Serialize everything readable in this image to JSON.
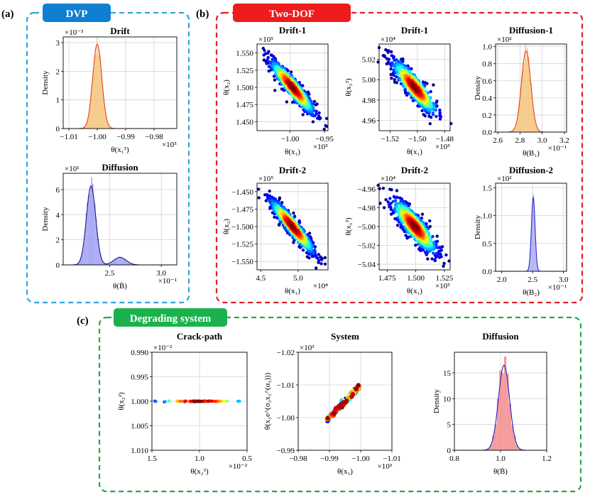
{
  "panels": {
    "a": {
      "tag": "(a)",
      "label": "DVP",
      "color": "#0f7fd1",
      "border": "#2aa6e0"
    },
    "b": {
      "tag": "(b)",
      "label": "Two-DOF",
      "color": "#ee1c1c",
      "border": "#e02020"
    },
    "c": {
      "tag": "(c)",
      "label": "Degrading system",
      "color": "#1bb24d",
      "border": "#22a84a"
    }
  },
  "chart_data": [
    {
      "id": "a1",
      "type": "area",
      "title": "Drift",
      "panel": "a",
      "ylabel": "Density",
      "xlabel": "θ(x₁³)",
      "x_multiplier": "×10⁵",
      "y_multiplier": "×10⁻³",
      "xlim": [
        -1.012,
        -0.972
      ],
      "ylim": [
        0,
        3.2
      ],
      "xticks": [
        -1.01,
        -1.0,
        -0.99,
        -0.98
      ],
      "xtick_labels": [
        "−1.01",
        "−1.00",
        "−0.99",
        "−0.98"
      ],
      "yticks": [
        0,
        1,
        2,
        3
      ],
      "ytick_labels": [
        "0",
        "1",
        "2",
        "3"
      ],
      "color": "#f5c070",
      "line_color": "#e0401f",
      "peak_x": -1.0,
      "peak_y": 2.95,
      "width": 0.0016
    },
    {
      "id": "a2",
      "type": "area",
      "title": "Diffusion",
      "panel": "a",
      "ylabel": "Density",
      "xlabel": "θ(Ḃ)",
      "x_multiplier": "×10⁻¹",
      "y_multiplier": "×10¹",
      "xlim": [
        2.05,
        3.15
      ],
      "ylim": [
        0,
        7.3
      ],
      "xticks": [
        2.5,
        3.0
      ],
      "xtick_labels": [
        "2.5",
        "3.0"
      ],
      "yticks": [
        0,
        2,
        4,
        6
      ],
      "ytick_labels": [
        "0",
        "2",
        "4",
        "6"
      ],
      "color": "#9a9af0",
      "line_color": "#1a1a8c",
      "peak_x": 2.32,
      "peak_y": 6.3,
      "width": 0.045,
      "peak2_x": 2.6,
      "peak2_y": 0.6,
      "width2": 0.06
    },
    {
      "id": "b1",
      "type": "scatter",
      "title": "Drift-1",
      "panel": "b",
      "xlabel": "θ(x₁)",
      "ylabel": "θ(x₂)",
      "x_multiplier": "×10⁵",
      "y_multiplier": "×10⁵",
      "xlim": [
        -1.048,
        -0.945
      ],
      "ylim": [
        1.437,
        1.563
      ],
      "xticks": [
        -1.0,
        -0.95
      ],
      "xtick_labels": [
        "−1.00",
        "−0.95"
      ],
      "yticks": [
        1.45,
        1.475,
        1.5,
        1.525,
        1.55
      ],
      "ytick_labels": [
        "1.450",
        "1.475",
        "1.500",
        "1.525",
        "1.550"
      ],
      "corr": -0.92
    },
    {
      "id": "b2",
      "type": "scatter",
      "title": "Drift-1",
      "panel": "b",
      "xlabel": "θ(x₁)",
      "ylabel": "θ(x₂³)",
      "x_multiplier": "×10⁵",
      "y_multiplier": "×10⁴",
      "xlim": [
        -1.528,
        -1.476
      ],
      "ylim": [
        4.95,
        5.035
      ],
      "xticks": [
        -1.52,
        -1.5,
        -1.48
      ],
      "xtick_labels": [
        "−1.52",
        "−1.50",
        "−1.48"
      ],
      "yticks": [
        4.96,
        4.98,
        5.0,
        5.02
      ],
      "ytick_labels": [
        "4.96",
        "4.98",
        "5.00",
        "5.02"
      ],
      "corr": -0.88
    },
    {
      "id": "b3",
      "type": "area",
      "title": "Diffusion-1",
      "panel": "b",
      "ylabel": "Density",
      "xlabel": "θ(B₁)",
      "x_multiplier": "×10⁻¹",
      "y_multiplier": "×10²",
      "xlim": [
        2.58,
        3.22
      ],
      "ylim": [
        0,
        1.03
      ],
      "xticks": [
        2.6,
        2.8,
        3.0,
        3.2
      ],
      "xtick_labels": [
        "2.6",
        "2.8",
        "3.0",
        "3.2"
      ],
      "yticks": [
        0,
        0.2,
        0.4,
        0.6,
        0.8,
        1.0
      ],
      "ytick_labels": [
        "0.0",
        "0.2",
        "0.4",
        "0.6",
        "0.8",
        "1.0"
      ],
      "color": "#f5c070",
      "line_color": "#e0401f",
      "peak_x": 2.855,
      "peak_y": 0.95,
      "width": 0.042
    },
    {
      "id": "b4",
      "type": "scatter",
      "title": "Drift-2",
      "panel": "b",
      "xlabel": "θ(x₁)",
      "ylabel": "θ(x₂)",
      "x_multiplier": "×10⁴",
      "y_multiplier": "×10⁵",
      "xlim": [
        4.45,
        5.4
      ],
      "ylim": [
        -1.562,
        -1.438
      ],
      "xticks": [
        4.5,
        5.0
      ],
      "xtick_labels": [
        "4.5",
        "5.0"
      ],
      "yticks": [
        -1.45,
        -1.475,
        -1.5,
        -1.525,
        -1.55
      ],
      "ytick_labels": [
        "−1.450",
        "−1.475",
        "−1.500",
        "−1.525",
        "−1.550"
      ],
      "corr": -0.93
    },
    {
      "id": "b5",
      "type": "scatter",
      "title": "Drift-2",
      "panel": "b",
      "xlabel": "θ(x₁)",
      "ylabel": "θ(x₁³)",
      "x_multiplier": "×10⁵",
      "y_multiplier": "×10⁴",
      "xlim": [
        1.468,
        1.53
      ],
      "ylim": [
        -5.046,
        -4.954
      ],
      "xticks": [
        1.475,
        1.5,
        1.525
      ],
      "xtick_labels": [
        "1.475",
        "1.500",
        "1.525"
      ],
      "yticks": [
        -4.96,
        -4.98,
        -5.0,
        -5.02,
        -5.04
      ],
      "ytick_labels": [
        "−4.96",
        "−4.98",
        "−5.00",
        "−5.02",
        "−5.04"
      ],
      "corr": -0.85
    },
    {
      "id": "b6",
      "type": "area",
      "title": "Diffusion-2",
      "panel": "b",
      "ylabel": "Density",
      "xlabel": "θ(B₂)",
      "x_multiplier": "×10⁻¹",
      "y_multiplier": "×10²",
      "xlim": [
        1.9,
        3.05
      ],
      "ylim": [
        0,
        1.58
      ],
      "xticks": [
        2.0,
        2.5,
        3.0
      ],
      "xtick_labels": [
        "2.0",
        "2.5",
        "3.0"
      ],
      "yticks": [
        0,
        0.5,
        1.0,
        1.5
      ],
      "ytick_labels": [
        "0.0",
        "0.5",
        "1.0",
        "1.5"
      ],
      "color": "#9a9af0",
      "line_color": "#2a2ad0",
      "peak_x": 2.51,
      "peak_y": 1.32,
      "width": 0.03
    },
    {
      "id": "c1",
      "type": "scatter",
      "title": "Crack-path",
      "panel": "c",
      "xlabel": "θ(x₂³)",
      "ylabel": "θ(x₂²)",
      "x_multiplier": "×10⁻²",
      "y_multiplier": "×10⁻²",
      "xlim": [
        1.5,
        0.5
      ],
      "ylim": [
        1.01,
        0.99
      ],
      "xticks": [
        1.5,
        1.0,
        0.5
      ],
      "xtick_labels": [
        "1.5",
        "1.0",
        "0.5"
      ],
      "yticks": [
        0.99,
        0.995,
        1.0,
        1.005,
        1.01
      ],
      "ytick_labels": [
        "0.990",
        "0.995",
        "1.000",
        "1.005",
        "1.010"
      ],
      "corr": 0
    },
    {
      "id": "c2",
      "type": "scatter",
      "title": "System",
      "panel": "c",
      "xlabel": "θ(x₁)",
      "ylabel": "θ(x₁e^(σ₃x₁^(α₁)))",
      "x_multiplier": "×10³",
      "y_multiplier": "×10³",
      "xlim": [
        -0.98,
        -1.01
      ],
      "ylim": [
        -0.99,
        -1.02
      ],
      "xticks": [
        -0.98,
        -0.99,
        -1.0,
        -1.01
      ],
      "xtick_labels": [
        "−0.98",
        "−0.99",
        "−1.00",
        "−1.01"
      ],
      "yticks": [
        -1.02,
        -1.01,
        -1.0,
        -0.99
      ],
      "ytick_labels": [
        "−1.02",
        "−1.01",
        "−1.00",
        "−0.99"
      ],
      "corr": 0.99
    },
    {
      "id": "c3",
      "type": "area",
      "title": "Diffusion",
      "panel": "c",
      "ylabel": "Density",
      "xlabel": "θ(Ḃ)",
      "x_multiplier": "",
      "y_multiplier": "",
      "xlim": [
        0.8,
        1.2
      ],
      "ylim": [
        0,
        19
      ],
      "xticks": [
        0.8,
        1.0,
        1.2
      ],
      "xtick_labels": [
        "0.8",
        "1.0",
        "1.2"
      ],
      "yticks": [
        0,
        5,
        10,
        15
      ],
      "ytick_labels": [
        "0",
        "5",
        "10",
        "15"
      ],
      "color": "#f48a8a",
      "line_color": "#2222cc",
      "peak_x": 1.015,
      "peak_y": 16.5,
      "width": 0.024,
      "bar_style": "wide"
    }
  ]
}
